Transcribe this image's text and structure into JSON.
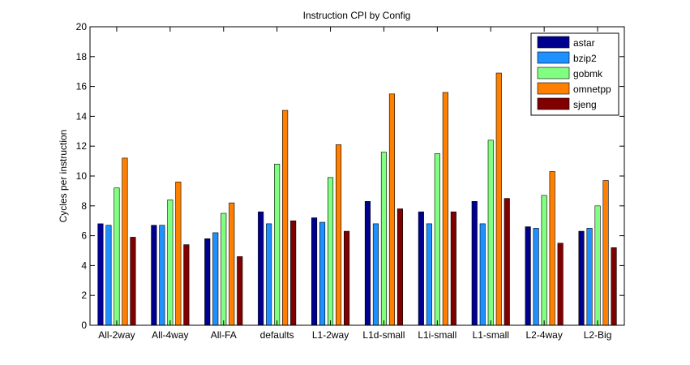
{
  "chart_data": {
    "type": "bar",
    "title": "Instruction CPI by Config",
    "xlabel": "",
    "ylabel": "Cycles per instruction",
    "ylim": [
      0,
      20
    ],
    "yticks": [
      0,
      2,
      4,
      6,
      8,
      10,
      12,
      14,
      16,
      18,
      20
    ],
    "grid": false,
    "legend_position": "top-right",
    "categories": [
      "All-2way",
      "All-4way",
      "All-FA",
      "defaults",
      "L1-2way",
      "L1d-small",
      "L1i-small",
      "L1-small",
      "L2-4way",
      "L2-Big"
    ],
    "series": [
      {
        "name": "astar",
        "color": "#00008f",
        "values": [
          6.8,
          6.7,
          5.8,
          7.6,
          7.2,
          8.3,
          7.6,
          8.3,
          6.6,
          6.3
        ]
      },
      {
        "name": "bzip2",
        "color": "#1e90ff",
        "values": [
          6.7,
          6.7,
          6.2,
          6.8,
          6.9,
          6.8,
          6.8,
          6.8,
          6.5,
          6.5
        ]
      },
      {
        "name": "gobmk",
        "color": "#80ff80",
        "values": [
          9.2,
          8.4,
          7.5,
          10.8,
          9.9,
          11.6,
          11.5,
          12.4,
          8.7,
          8.0
        ]
      },
      {
        "name": "omnetpp",
        "color": "#ff7f00",
        "values": [
          11.2,
          9.6,
          8.2,
          14.4,
          12.1,
          15.5,
          15.6,
          16.9,
          10.3,
          9.7
        ]
      },
      {
        "name": "sjeng",
        "color": "#800000",
        "values": [
          5.9,
          5.4,
          4.6,
          7.0,
          6.3,
          7.8,
          7.6,
          8.5,
          5.5,
          5.2
        ]
      }
    ]
  }
}
